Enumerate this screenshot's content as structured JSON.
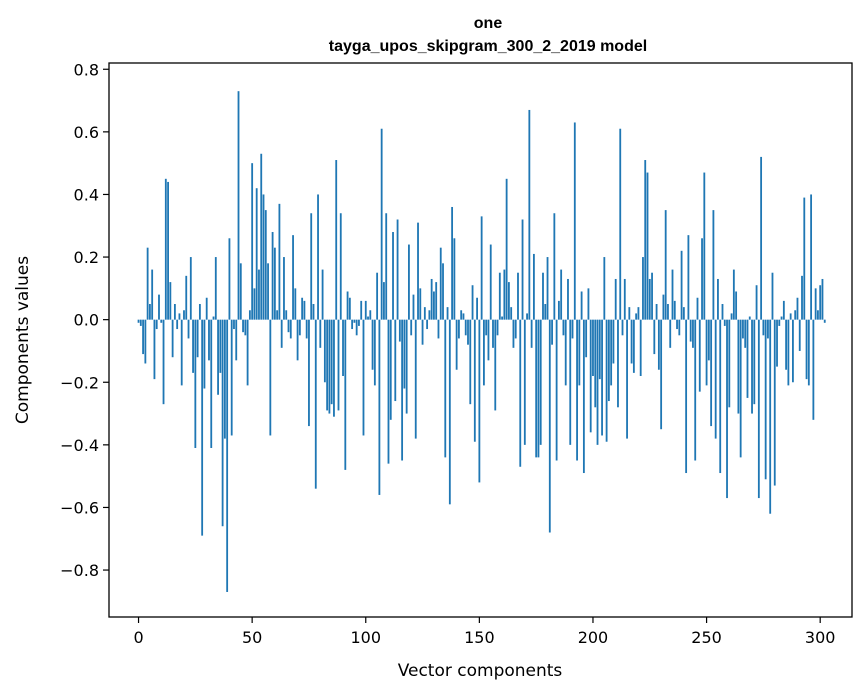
{
  "chart_data": {
    "type": "bar",
    "title": "one",
    "subtitle": "tayga_upos_skipgram_300_2_2019 model",
    "xlabel": "Vector components",
    "ylabel": "Components values",
    "xlim": [
      -13,
      314
    ],
    "ylim": [
      -0.95,
      0.82
    ],
    "xticks": [
      0,
      50,
      100,
      150,
      200,
      250,
      300
    ],
    "yticks": [
      0.8,
      0.6,
      0.4,
      0.2,
      0.0,
      -0.2,
      -0.4,
      -0.6,
      -0.8
    ],
    "xtick_labels": [
      "0",
      "50",
      "100",
      "150",
      "200",
      "250",
      "300"
    ],
    "ytick_labels": [
      "0.8",
      "0.6",
      "0.4",
      "0.2",
      "0.0",
      "−0.2",
      "−0.4",
      "−0.6",
      "−0.8"
    ],
    "bar_color": "#1f77b4",
    "grid": false,
    "values": [
      -0.01,
      -0.02,
      -0.11,
      -0.14,
      0.23,
      0.05,
      0.16,
      -0.19,
      -0.03,
      0.08,
      -0.01,
      -0.27,
      0.45,
      0.44,
      0.12,
      -0.12,
      0.05,
      -0.03,
      0.02,
      -0.21,
      0.03,
      0.14,
      -0.06,
      0.2,
      -0.17,
      -0.41,
      -0.12,
      0.05,
      -0.69,
      -0.22,
      0.07,
      -0.13,
      -0.41,
      0.01,
      0.2,
      -0.24,
      -0.17,
      -0.66,
      -0.38,
      -0.87,
      0.26,
      -0.37,
      -0.03,
      -0.13,
      0.73,
      0.18,
      -0.04,
      -0.05,
      -0.21,
      0.03,
      0.5,
      0.1,
      0.42,
      0.16,
      0.53,
      0.4,
      0.35,
      0.18,
      -0.37,
      0.28,
      0.23,
      0.03,
      0.37,
      -0.09,
      0.2,
      0.03,
      -0.04,
      -0.06,
      0.27,
      0.1,
      -0.13,
      -0.05,
      0.07,
      0.06,
      -0.06,
      -0.34,
      0.34,
      0.05,
      -0.54,
      0.4,
      -0.09,
      0.16,
      -0.2,
      -0.29,
      -0.3,
      -0.27,
      -0.31,
      0.51,
      -0.29,
      0.34,
      -0.18,
      -0.48,
      0.09,
      0.07,
      -0.03,
      -0.01,
      -0.05,
      -0.02,
      0.06,
      -0.37,
      0.06,
      0.01,
      0.03,
      -0.16,
      -0.21,
      0.15,
      -0.56,
      0.61,
      0.12,
      0.34,
      -0.46,
      -0.32,
      0.28,
      -0.26,
      0.32,
      -0.07,
      -0.45,
      -0.22,
      -0.3,
      0.24,
      -0.05,
      0.08,
      -0.38,
      0.31,
      0.1,
      -0.08,
      0.04,
      -0.03,
      0.03,
      0.13,
      0.09,
      0.12,
      -0.06,
      0.23,
      0.18,
      -0.44,
      0.04,
      -0.59,
      0.36,
      0.26,
      -0.16,
      -0.06,
      0.03,
      0.02,
      -0.05,
      -0.08,
      -0.27,
      0.11,
      -0.39,
      0.07,
      -0.52,
      0.33,
      -0.21,
      -0.05,
      -0.13,
      0.24,
      -0.09,
      -0.29,
      -0.05,
      0.15,
      0.01,
      0.16,
      0.45,
      0.12,
      0.04,
      -0.09,
      -0.06,
      0.15,
      -0.47,
      0.32,
      -0.4,
      0.02,
      0.67,
      -0.09,
      0.21,
      -0.44,
      -0.44,
      -0.4,
      0.15,
      0.05,
      0.2,
      -0.68,
      -0.08,
      0.34,
      -0.45,
      0.06,
      0.16,
      -0.05,
      -0.21,
      0.13,
      -0.4,
      -0.06,
      0.63,
      -0.45,
      -0.21,
      0.09,
      -0.49,
      -0.12,
      0.1,
      -0.36,
      -0.18,
      -0.28,
      -0.4,
      -0.19,
      -0.37,
      0.2,
      -0.39,
      -0.26,
      -0.21,
      -0.14,
      0.13,
      -0.28,
      0.61,
      -0.05,
      0.13,
      -0.38,
      0.04,
      -0.14,
      -0.17,
      0.02,
      0.04,
      -0.18,
      0.2,
      0.51,
      0.47,
      0.13,
      0.15,
      -0.11,
      0.05,
      -0.16,
      -0.35,
      0.08,
      0.35,
      0.05,
      -0.09,
      0.16,
      0.06,
      -0.03,
      -0.05,
      0.22,
      0.04,
      -0.49,
      0.27,
      -0.07,
      -0.09,
      -0.45,
      0.07,
      -0.23,
      0.26,
      0.47,
      -0.21,
      -0.13,
      -0.34,
      0.35,
      -0.38,
      0.13,
      -0.49,
      0.05,
      -0.02,
      -0.57,
      -0.28,
      0.02,
      0.16,
      0.09,
      -0.3,
      -0.44,
      -0.06,
      -0.09,
      -0.25,
      0.01,
      -0.3,
      -0.27,
      0.11,
      -0.57,
      0.52,
      -0.05,
      -0.51,
      -0.06,
      -0.62,
      0.15,
      -0.53,
      -0.15,
      -0.02,
      0.01,
      0.06,
      -0.16,
      -0.21,
      0.02,
      -0.2,
      0.03,
      0.07,
      -0.1,
      0.14,
      0.39,
      -0.19,
      -0.21,
      0.4,
      -0.32,
      0.1,
      0.03,
      0.11,
      0.13,
      -0.01
    ]
  }
}
